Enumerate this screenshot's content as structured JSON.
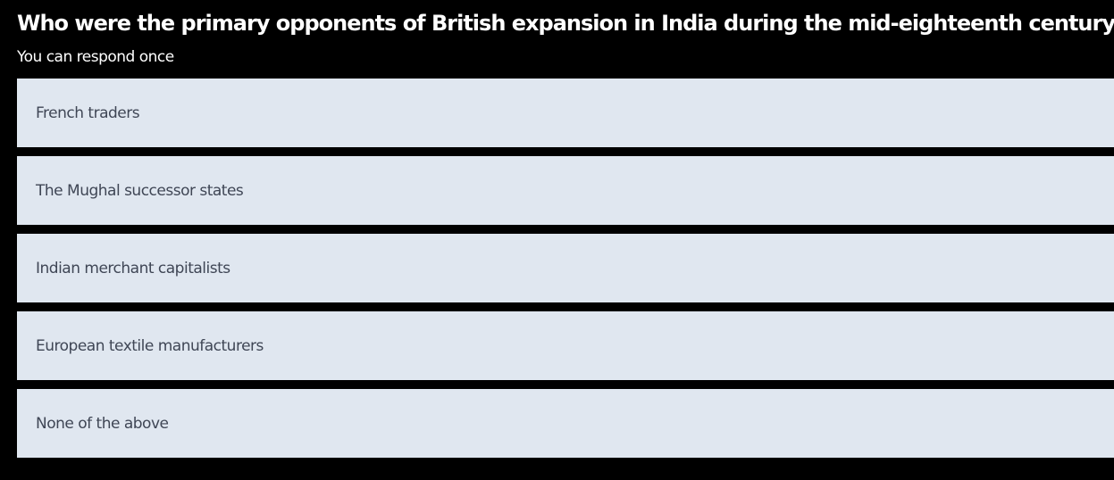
{
  "question": {
    "text": "Who were the primary opponents of British expansion in India during the mid-eighteenth century?",
    "subtitle": "You can respond once"
  },
  "options": [
    {
      "label": "French traders"
    },
    {
      "label": "The Mughal successor states"
    },
    {
      "label": "Indian merchant capitalists"
    },
    {
      "label": "European textile manufacturers"
    },
    {
      "label": "None of the above"
    }
  ],
  "colors": {
    "background": "#000000",
    "option_background": "#e0e7f0",
    "option_text": "#3f4655",
    "question_text": "#ffffff"
  }
}
